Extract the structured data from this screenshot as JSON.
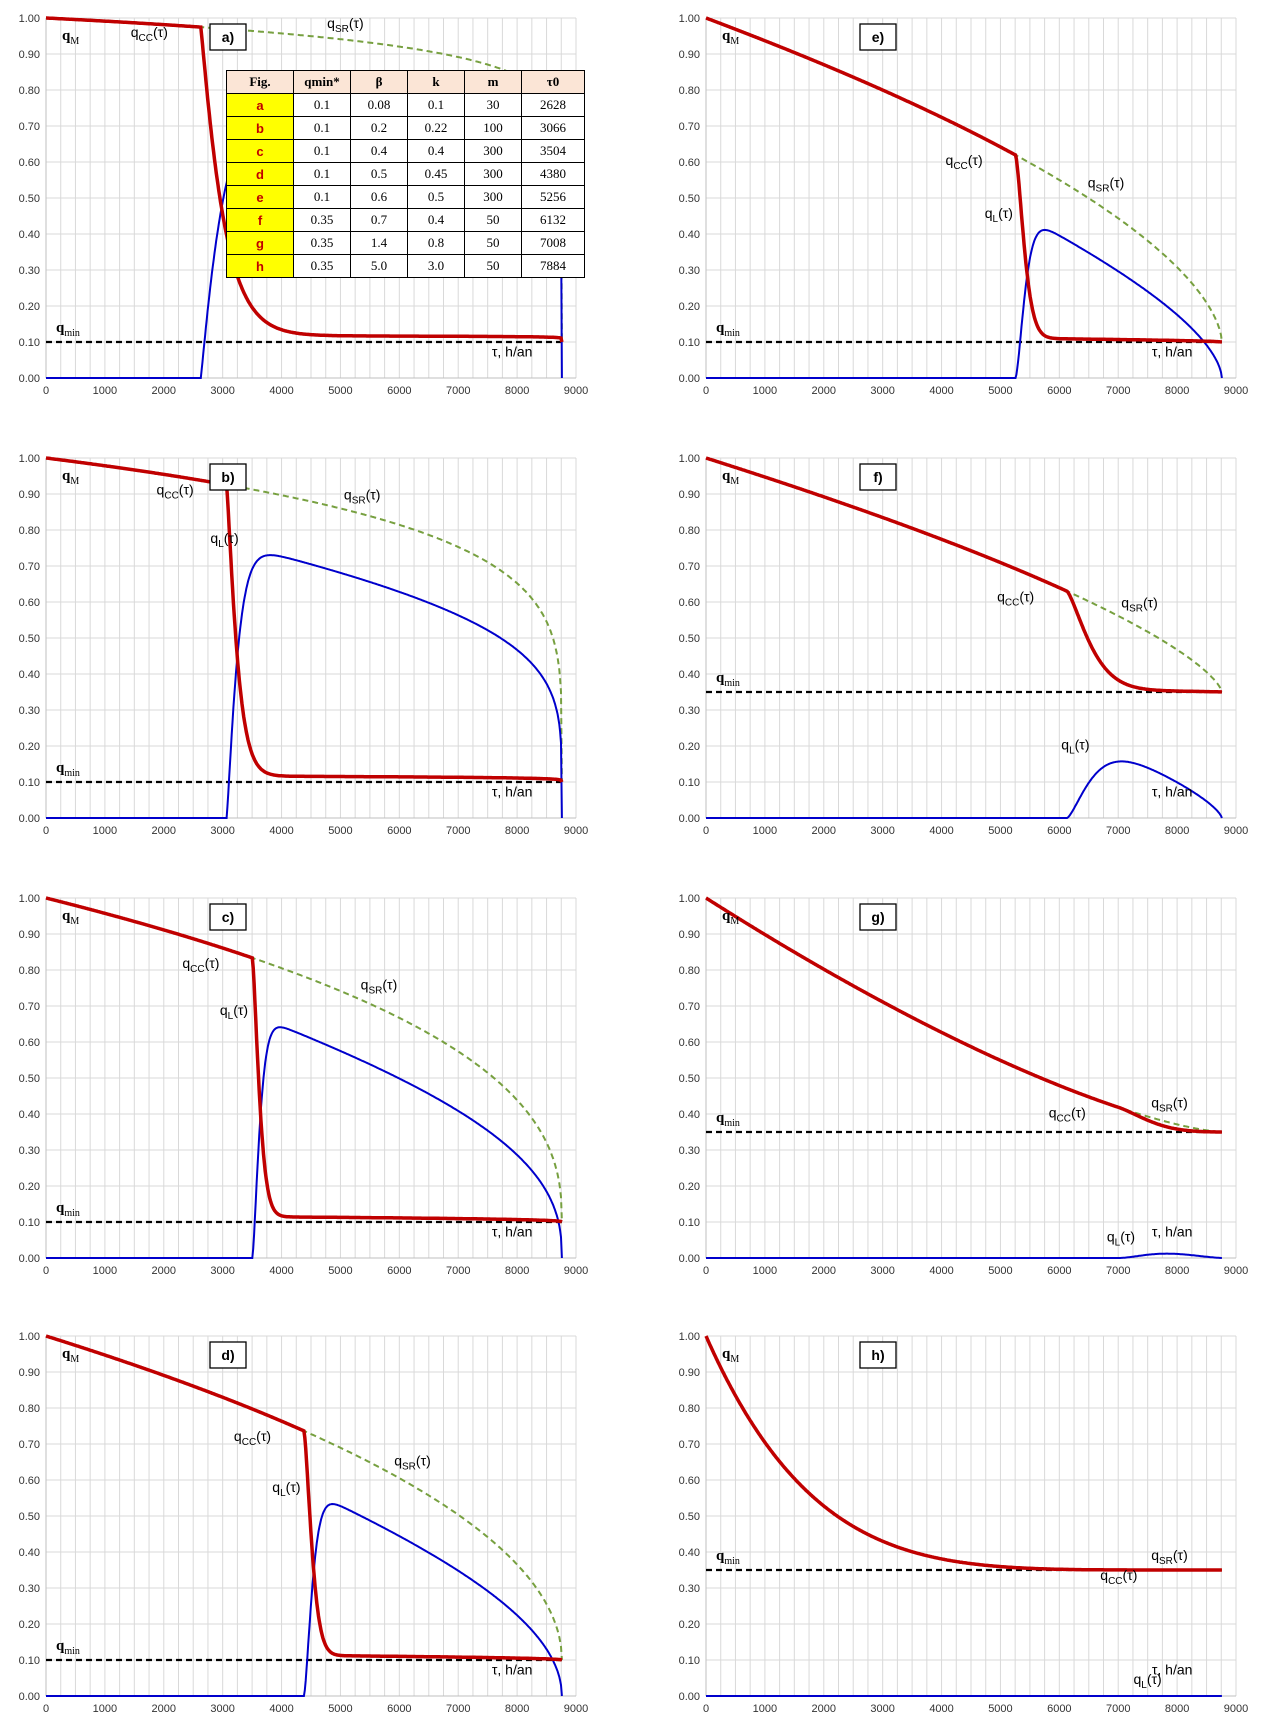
{
  "chart_data": [
    {
      "type": "line",
      "tag": "a)",
      "qmin": 0.1,
      "beta": 0.08,
      "k": 0.1,
      "m": 30,
      "tau0": 2628
    },
    {
      "type": "line",
      "tag": "b)",
      "qmin": 0.1,
      "beta": 0.2,
      "k": 0.22,
      "m": 100,
      "tau0": 3066
    },
    {
      "type": "line",
      "tag": "c)",
      "qmin": 0.1,
      "beta": 0.4,
      "k": 0.4,
      "m": 300,
      "tau0": 3504
    },
    {
      "type": "line",
      "tag": "d)",
      "qmin": 0.1,
      "beta": 0.5,
      "k": 0.45,
      "m": 300,
      "tau0": 4380
    },
    {
      "type": "line",
      "tag": "e)",
      "qmin": 0.1,
      "beta": 0.6,
      "k": 0.5,
      "m": 300,
      "tau0": 5256
    },
    {
      "type": "line",
      "tag": "f)",
      "qmin": 0.35,
      "beta": 0.7,
      "k": 0.4,
      "m": 50,
      "tau0": 6132
    },
    {
      "type": "line",
      "tag": "g)",
      "qmin": 0.35,
      "beta": 1.4,
      "k": 0.8,
      "m": 50,
      "tau0": 7008
    },
    {
      "type": "line",
      "tag": "h)",
      "qmin": 0.35,
      "beta": 5.0,
      "k": 3.0,
      "m": 50,
      "tau0": 7884
    }
  ],
  "axes": {
    "x_ticks": [
      "0",
      "1000",
      "2000",
      "3000",
      "4000",
      "5000",
      "6000",
      "7000",
      "8000",
      "9000"
    ],
    "y_ticks": [
      "0.00",
      "0.10",
      "0.20",
      "0.30",
      "0.40",
      "0.50",
      "0.60",
      "0.70",
      "0.80",
      "0.90",
      "1.00"
    ],
    "xlim": [
      0,
      9000
    ],
    "ylim": [
      0,
      1
    ],
    "tau_end": 8760,
    "grid": true
  },
  "labels": {
    "qM": "q",
    "qM_sub": "M",
    "qmin": "q",
    "qmin_sub": "min",
    "qCC": "q",
    "qCC_sub": "CC",
    "qCC_arg": "(τ)",
    "qSR": "q",
    "qSR_sub": "SR",
    "qSR_arg": "(τ)",
    "qL": "q",
    "qL_sub": "L",
    "qL_arg": "(τ)",
    "tau": "τ",
    "tau_unit": ", h/an"
  },
  "table": {
    "headers": [
      "Fig.",
      "qmin*",
      "β",
      "k",
      "m",
      "τ0"
    ],
    "rows": [
      [
        "a",
        "0.1",
        "0.08",
        "0.1",
        "30",
        "2628"
      ],
      [
        "b",
        "0.1",
        "0.2",
        "0.22",
        "100",
        "3066"
      ],
      [
        "c",
        "0.1",
        "0.4",
        "0.4",
        "300",
        "3504"
      ],
      [
        "d",
        "0.1",
        "0.5",
        "0.45",
        "300",
        "4380"
      ],
      [
        "e",
        "0.1",
        "0.6",
        "0.5",
        "300",
        "5256"
      ],
      [
        "f",
        "0.35",
        "0.7",
        "0.4",
        "50",
        "6132"
      ],
      [
        "g",
        "0.35",
        "1.4",
        "0.8",
        "50",
        "7008"
      ],
      [
        "h",
        "0.35",
        "5.0",
        "3.0",
        "50",
        "7884"
      ]
    ]
  },
  "colors": {
    "qCC": "#c00000",
    "qSR": "#77a040",
    "qL": "#0000cc",
    "qmin": "#000000",
    "grid": "#d9d9d9"
  }
}
